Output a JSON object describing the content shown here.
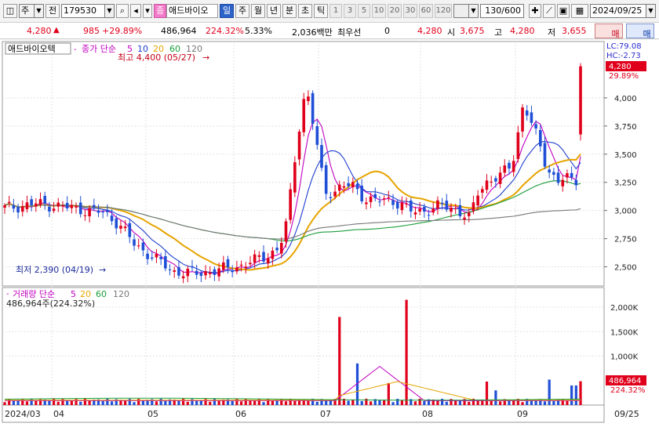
{
  "toolbar": {
    "market_label": "주",
    "type_label": "전",
    "code": "179530",
    "badge": "종",
    "stock_name": "애드바이오",
    "period_selected": "일",
    "periods": [
      "주",
      "월",
      "년",
      "분",
      "초",
      "틱"
    ],
    "tick_counts": [
      "1",
      "3",
      "5",
      "10",
      "20",
      "30",
      "60",
      "120"
    ],
    "view_count": "130/600",
    "date": "2024/09/25"
  },
  "info": {
    "price": "4,280",
    "change": "985",
    "change_pct": "+29.89%",
    "volume": "486,964",
    "volume_ratio": "224.32%",
    "turnover": "5.33%",
    "amount": "2,036백만",
    "priority_label": "최우선",
    "priority_value": "0",
    "last_price": "4,280",
    "open_label": "시",
    "open_value": "3,675",
    "high_label": "고",
    "high_value": "4,280",
    "low_label": "저",
    "low_value": "3,655",
    "buy_label": "매수",
    "sell_label": "매도"
  },
  "chart_data": {
    "type": "candlestick",
    "stock_label": "애드바이오텍",
    "ma_legend": {
      "title": "종가 단순",
      "periods": [
        "5",
        "10",
        "20",
        "60",
        "120"
      ],
      "colors": [
        "#c000c0",
        "#1f3fcf",
        "#e6a400",
        "#1a9e3a",
        "#777777"
      ]
    },
    "lc_label": "LC:79.08",
    "hc_label": "HC:-2.73",
    "current_price_tag": "4,280",
    "current_pct_tag": "29.89%",
    "high_annotation": "최고 4,400 (05/27)",
    "low_annotation": "최저 2,390 (04/19)",
    "price_axis": [
      "4,000",
      "3,750",
      "3,500",
      "3,250",
      "3,000",
      "2,750",
      "2,500"
    ],
    "price_range": [
      2330,
      4500
    ],
    "volume_legend": {
      "title": "거래량 단순",
      "periods": [
        "5",
        "20",
        "60",
        "120"
      ],
      "colors": [
        "#c000c0",
        "#e6a400",
        "#1a9e3a",
        "#777777"
      ]
    },
    "volume_summary": "486,964주(224.32%)",
    "volume_axis": [
      "2,000K",
      "1,500K",
      "1,000K"
    ],
    "volume_tag": "486,964",
    "volume_pct_tag": "224.32%",
    "x_labels": [
      "2024/03",
      "04",
      "05",
      "06",
      "07",
      "08",
      "09"
    ],
    "x_label_right": "09/25",
    "colors": {
      "up": "#e0001b",
      "down": "#1f4fd6"
    }
  }
}
